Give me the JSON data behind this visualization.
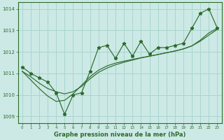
{
  "xlabel": "Graphe pression niveau de la mer (hPa)",
  "ylim": [
    1008.7,
    1014.3
  ],
  "xlim": [
    -0.5,
    23.5
  ],
  "yticks": [
    1009,
    1010,
    1011,
    1012,
    1013,
    1014
  ],
  "xticks": [
    0,
    1,
    2,
    3,
    4,
    5,
    6,
    7,
    8,
    9,
    10,
    11,
    12,
    13,
    14,
    15,
    16,
    17,
    18,
    19,
    20,
    21,
    22,
    23
  ],
  "bg_color": "#cce9e5",
  "grid_color": "#a8d5d0",
  "line_color": "#2d6b2d",
  "pressure_data": [
    1011.3,
    1011.0,
    1010.8,
    1010.6,
    1010.1,
    1009.1,
    1010.0,
    1010.1,
    1011.1,
    1012.2,
    1012.3,
    1011.7,
    1012.4,
    1011.8,
    1012.5,
    1011.9,
    1012.2,
    1012.2,
    1012.3,
    1012.4,
    1013.1,
    1013.8,
    1014.0,
    1013.1
  ],
  "smooth1": [
    1011.1,
    1010.85,
    1010.55,
    1010.3,
    1010.15,
    1010.05,
    1010.15,
    1010.4,
    1010.75,
    1011.05,
    1011.25,
    1011.4,
    1011.52,
    1011.62,
    1011.72,
    1011.8,
    1011.88,
    1011.96,
    1012.04,
    1012.14,
    1012.28,
    1012.5,
    1012.78,
    1013.05
  ],
  "smooth2": [
    1011.1,
    1010.7,
    1010.3,
    1009.95,
    1009.7,
    1009.75,
    1010.05,
    1010.45,
    1010.85,
    1011.15,
    1011.35,
    1011.48,
    1011.57,
    1011.65,
    1011.73,
    1011.8,
    1011.88,
    1011.96,
    1012.04,
    1012.14,
    1012.28,
    1012.55,
    1012.88,
    1013.1
  ]
}
